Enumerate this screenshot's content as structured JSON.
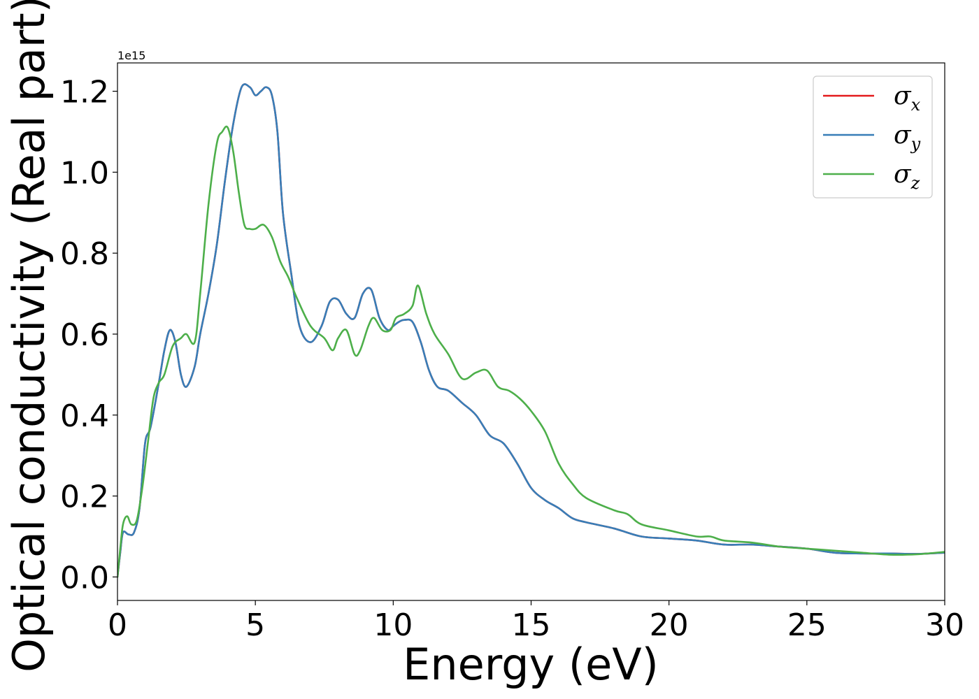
{
  "chart_data": {
    "type": "line",
    "title": "",
    "xlabel": "Energy (eV)",
    "ylabel": "Optical conductivity (Real part)",
    "y_offset_text": "1e15",
    "y_scale": 1000000000000000.0,
    "xlim": [
      0,
      30
    ],
    "ylim": [
      -0.058,
      1.27
    ],
    "xticks": [
      0,
      5,
      10,
      15,
      20,
      25,
      30
    ],
    "xtick_labels": [
      "0",
      "5",
      "10",
      "15",
      "20",
      "25",
      "30"
    ],
    "yticks": [
      0.0,
      0.2,
      0.4,
      0.6,
      0.8,
      1.0,
      1.2
    ],
    "ytick_labels": [
      "0.0",
      "0.2",
      "0.4",
      "0.6",
      "0.8",
      "1.0",
      "1.2"
    ],
    "grid": false,
    "legend_position": "top-right",
    "series": [
      {
        "name": "σx",
        "legend_base": "σ",
        "legend_sub": "x",
        "color": "#e41a1c",
        "x": [
          0,
          0.1,
          0.2,
          0.4,
          0.6,
          0.8,
          1.0,
          1.2,
          1.5,
          1.7,
          1.9,
          2.1,
          2.3,
          2.5,
          2.8,
          3.0,
          3.3,
          3.6,
          3.9,
          4.2,
          4.5,
          4.8,
          5.0,
          5.2,
          5.4,
          5.6,
          5.8,
          6.0,
          6.3,
          6.6,
          7.0,
          7.4,
          7.7,
          8.0,
          8.3,
          8.6,
          8.9,
          9.2,
          9.5,
          9.8,
          10.0,
          10.2,
          10.4,
          10.7,
          11.0,
          11.3,
          11.6,
          12.0,
          12.5,
          13.0,
          13.5,
          14.0,
          14.5,
          15.0,
          15.5,
          16.0,
          16.5,
          17.0,
          18.0,
          19.0,
          20.0,
          21.0,
          22.0,
          23.0,
          24.0,
          25.0,
          26.0,
          27.0,
          28.0,
          29.0,
          30.0
        ],
        "values": [
          0.0,
          0.06,
          0.11,
          0.105,
          0.11,
          0.17,
          0.33,
          0.37,
          0.48,
          0.56,
          0.61,
          0.58,
          0.5,
          0.47,
          0.52,
          0.6,
          0.7,
          0.82,
          0.98,
          1.12,
          1.21,
          1.21,
          1.19,
          1.2,
          1.21,
          1.19,
          1.1,
          0.9,
          0.75,
          0.62,
          0.58,
          0.62,
          0.68,
          0.685,
          0.65,
          0.64,
          0.7,
          0.71,
          0.64,
          0.61,
          0.62,
          0.63,
          0.635,
          0.63,
          0.58,
          0.51,
          0.47,
          0.46,
          0.43,
          0.4,
          0.35,
          0.33,
          0.28,
          0.22,
          0.19,
          0.17,
          0.145,
          0.135,
          0.12,
          0.1,
          0.095,
          0.09,
          0.08,
          0.08,
          0.075,
          0.07,
          0.06,
          0.058,
          0.058,
          0.057,
          0.06
        ]
      },
      {
        "name": "σy",
        "legend_base": "σ",
        "legend_sub": "y",
        "color": "#377eb8",
        "x": [
          0,
          0.1,
          0.2,
          0.4,
          0.6,
          0.8,
          1.0,
          1.2,
          1.5,
          1.7,
          1.9,
          2.1,
          2.3,
          2.5,
          2.8,
          3.0,
          3.3,
          3.6,
          3.9,
          4.2,
          4.5,
          4.8,
          5.0,
          5.2,
          5.4,
          5.6,
          5.8,
          6.0,
          6.3,
          6.6,
          7.0,
          7.4,
          7.7,
          8.0,
          8.3,
          8.6,
          8.9,
          9.2,
          9.5,
          9.8,
          10.0,
          10.2,
          10.4,
          10.7,
          11.0,
          11.3,
          11.6,
          12.0,
          12.5,
          13.0,
          13.5,
          14.0,
          14.5,
          15.0,
          15.5,
          16.0,
          16.5,
          17.0,
          18.0,
          19.0,
          20.0,
          21.0,
          22.0,
          23.0,
          24.0,
          25.0,
          26.0,
          27.0,
          28.0,
          29.0,
          30.0
        ],
        "values": [
          0.0,
          0.06,
          0.11,
          0.105,
          0.11,
          0.17,
          0.33,
          0.37,
          0.48,
          0.56,
          0.61,
          0.58,
          0.5,
          0.47,
          0.52,
          0.6,
          0.7,
          0.82,
          0.98,
          1.12,
          1.21,
          1.21,
          1.19,
          1.2,
          1.21,
          1.19,
          1.1,
          0.9,
          0.75,
          0.62,
          0.58,
          0.62,
          0.68,
          0.685,
          0.65,
          0.64,
          0.7,
          0.71,
          0.64,
          0.61,
          0.62,
          0.63,
          0.635,
          0.63,
          0.58,
          0.51,
          0.47,
          0.46,
          0.43,
          0.4,
          0.35,
          0.33,
          0.28,
          0.22,
          0.19,
          0.17,
          0.145,
          0.135,
          0.12,
          0.1,
          0.095,
          0.09,
          0.08,
          0.08,
          0.075,
          0.07,
          0.06,
          0.058,
          0.058,
          0.057,
          0.06
        ]
      },
      {
        "name": "σz",
        "legend_base": "σ",
        "legend_sub": "z",
        "color": "#4daf4a",
        "x": [
          0,
          0.1,
          0.2,
          0.35,
          0.5,
          0.7,
          0.9,
          1.1,
          1.3,
          1.5,
          1.7,
          2.0,
          2.3,
          2.5,
          2.8,
          3.0,
          3.3,
          3.6,
          3.8,
          4.0,
          4.2,
          4.4,
          4.6,
          4.8,
          5.0,
          5.3,
          5.6,
          5.9,
          6.2,
          6.5,
          7.0,
          7.5,
          7.8,
          8.0,
          8.3,
          8.6,
          8.8,
          9.1,
          9.3,
          9.6,
          9.9,
          10.1,
          10.4,
          10.7,
          10.9,
          11.2,
          11.5,
          12.0,
          12.5,
          13.0,
          13.4,
          13.8,
          14.2,
          14.6,
          15.0,
          15.5,
          16.0,
          16.5,
          17.0,
          18.0,
          18.5,
          19.0,
          20.0,
          21.0,
          21.5,
          22.0,
          23.0,
          24.0,
          25.0,
          26.0,
          27.0,
          28.0,
          29.0,
          30.0
        ],
        "values": [
          0.0,
          0.07,
          0.13,
          0.15,
          0.13,
          0.14,
          0.22,
          0.33,
          0.44,
          0.48,
          0.5,
          0.57,
          0.59,
          0.6,
          0.58,
          0.7,
          0.92,
          1.07,
          1.1,
          1.11,
          1.05,
          0.95,
          0.87,
          0.86,
          0.86,
          0.87,
          0.84,
          0.78,
          0.74,
          0.69,
          0.62,
          0.59,
          0.56,
          0.59,
          0.61,
          0.55,
          0.56,
          0.62,
          0.64,
          0.61,
          0.61,
          0.64,
          0.65,
          0.67,
          0.72,
          0.65,
          0.6,
          0.55,
          0.49,
          0.505,
          0.51,
          0.47,
          0.46,
          0.44,
          0.41,
          0.36,
          0.28,
          0.23,
          0.195,
          0.165,
          0.155,
          0.13,
          0.115,
          0.1,
          0.1,
          0.09,
          0.085,
          0.075,
          0.07,
          0.065,
          0.06,
          0.055,
          0.056,
          0.062
        ]
      }
    ]
  }
}
